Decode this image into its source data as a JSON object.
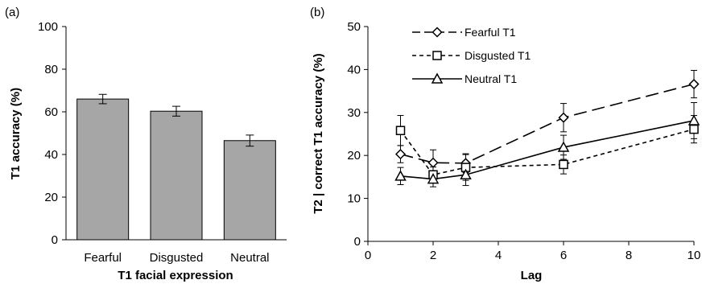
{
  "chart_data": [
    {
      "type": "bar",
      "panel_label": "(a)",
      "title": "",
      "xlabel": "T1  facial  expression",
      "ylabel": "T1  accuracy  (%)",
      "categories": [
        "Fearful",
        "Disgusted",
        "Neutral"
      ],
      "values": [
        66,
        60.3,
        46.5
      ],
      "errors": [
        2.2,
        2.3,
        2.6
      ],
      "ylim": [
        0,
        100
      ],
      "yticks": [
        0,
        20,
        40,
        60,
        80,
        100
      ],
      "bar_color": "#a6a6a6",
      "grid": false
    },
    {
      "type": "line",
      "panel_label": "(b)",
      "title": "",
      "xlabel": "Lag",
      "ylabel": "T2 | correct  T1  accuracy  (%)",
      "xlim": [
        0,
        10
      ],
      "ylim": [
        0,
        50
      ],
      "xticks": [
        0,
        2,
        4,
        6,
        8,
        10
      ],
      "yticks": [
        0,
        10,
        20,
        30,
        40,
        50
      ],
      "x": [
        1,
        2,
        3,
        6,
        10
      ],
      "series": [
        {
          "name": "Fearful T1",
          "marker": "diamond",
          "dash": "long-dash",
          "values": [
            20.3,
            18.3,
            18.2,
            28.8,
            36.6
          ],
          "errors": [
            2.0,
            3.0,
            2.2,
            3.3,
            3.2
          ]
        },
        {
          "name": "Disgusted T1",
          "marker": "square",
          "dash": "short-dash",
          "values": [
            25.8,
            15.5,
            17.2,
            17.9,
            26.1
          ],
          "errors": [
            3.5,
            1.8,
            3.0,
            2.2,
            3.2
          ]
        },
        {
          "name": "Neutral T1",
          "marker": "triangle",
          "dash": "solid",
          "values": [
            15.2,
            14.5,
            15.5,
            21.9,
            28.1
          ],
          "errors": [
            2.0,
            1.8,
            2.5,
            2.8,
            4.2
          ]
        }
      ],
      "legend_position": "top-left",
      "grid": false
    }
  ]
}
